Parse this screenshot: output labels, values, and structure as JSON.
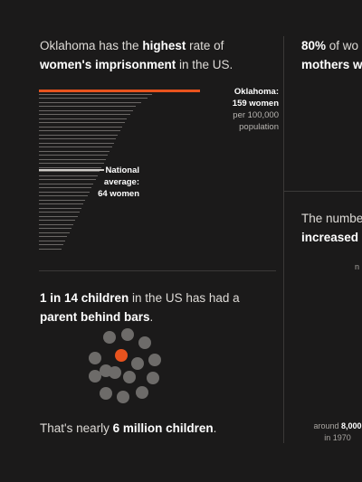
{
  "colors": {
    "accent": "#e8531e",
    "background": "#1b1a1a",
    "bar": "#6a6765",
    "dot": "#6d6b69"
  },
  "left_panel": {
    "headline_part1": "Oklahoma has the ",
    "headline_bold1": "highest",
    "headline_part2": " rate of",
    "headline_bold2": "women's imprisonment",
    "headline_part3": " in the US.",
    "chart_data": {
      "type": "bar",
      "highlight": {
        "state": "Oklahoma",
        "value": 159,
        "unit": "women per 100,000 population"
      },
      "national_average": 64,
      "values": [
        159,
        112,
        107,
        101,
        96,
        93,
        90,
        87,
        85,
        82,
        80,
        78,
        76,
        74,
        72,
        70,
        68,
        66,
        64,
        62,
        60,
        58,
        56,
        54,
        52,
        50,
        48,
        46,
        44,
        42,
        40,
        38,
        36,
        34,
        32,
        30,
        28,
        26,
        24,
        22
      ]
    },
    "oklahoma_label": "Oklahoma:",
    "oklahoma_value": "159 women",
    "oklahoma_unit1": "per 100,000",
    "oklahoma_unit2": "population",
    "national_label1": "National",
    "national_label2": "average:",
    "national_value": "64 women"
  },
  "children_panel": {
    "headline_bold1": "1 in 14 children",
    "headline_part1": " in the US has had a",
    "headline_bold2": "parent behind bars",
    "headline_part2": ".",
    "footer_part1": "That's nearly ",
    "footer_bold": "6 million children",
    "footer_part2": "."
  },
  "right_panel": {
    "headline_bold": "80%",
    "headline_part": " of  wo",
    "headline_line2": "mothers w",
    "number_line1": "The numbe",
    "number_line2": "increased",
    "small_label": "n",
    "footnote_part1": "around ",
    "footnote_bold": "8,000",
    "footnote_line2": "in 1970"
  }
}
